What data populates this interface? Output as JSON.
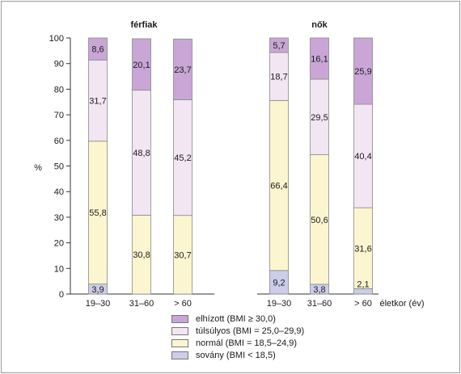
{
  "chart_data": {
    "type": "bar",
    "stacked": true,
    "ylabel": "%",
    "xlabel": "életkor (év)",
    "ylim": [
      0,
      100
    ],
    "yticks": [
      0,
      10,
      20,
      30,
      40,
      50,
      60,
      70,
      80,
      90,
      100
    ],
    "categories": [
      "19–30",
      "31–60",
      "> 60"
    ],
    "colors": {
      "elhizott": "#c9a6d6",
      "tulsulyos": "#f2e6f3",
      "normal": "#fbf6cf",
      "sovany": "#cccde8"
    },
    "panels": [
      {
        "title": "férfiak",
        "series": [
          {
            "key": "sovany",
            "values": [
              3.9,
              null,
              null
            ],
            "labels": [
              "3,9",
              "",
              ""
            ]
          },
          {
            "key": "normal",
            "values": [
              55.8,
              30.8,
              30.7
            ],
            "labels": [
              "55,8",
              "30,8",
              "30,7"
            ]
          },
          {
            "key": "tulsulyos",
            "values": [
              31.7,
              48.8,
              45.2
            ],
            "labels": [
              "31,7",
              "48,8",
              "45,2"
            ]
          },
          {
            "key": "elhizott",
            "values": [
              8.6,
              20.1,
              23.7
            ],
            "labels": [
              "8,6",
              "20,1",
              "23,7"
            ]
          }
        ]
      },
      {
        "title": "nők",
        "series": [
          {
            "key": "sovany",
            "values": [
              9.2,
              3.8,
              2.1
            ],
            "labels": [
              "9,2",
              "3,8",
              "2,1"
            ]
          },
          {
            "key": "normal",
            "values": [
              66.4,
              50.6,
              31.6
            ],
            "labels": [
              "66,4",
              "50,6",
              "31,6"
            ]
          },
          {
            "key": "tulsulyos",
            "values": [
              18.7,
              29.5,
              40.4
            ],
            "labels": [
              "18,7",
              "29,5",
              "40,4"
            ]
          },
          {
            "key": "elhizott",
            "values": [
              5.7,
              16.1,
              25.9
            ],
            "labels": [
              "5,7",
              "16,1",
              "25,9"
            ]
          }
        ]
      }
    ],
    "legend": [
      {
        "key": "elhizott",
        "label": "elhízott (BMI ≥ 30,0)"
      },
      {
        "key": "tulsulyos",
        "label": "túlsúlyos (BMI = 25,0–29,9)"
      },
      {
        "key": "normal",
        "label": "normál (BMI = 18,5–24,9)"
      },
      {
        "key": "sovany",
        "label": "sovány (BMI < 18,5)"
      }
    ]
  }
}
